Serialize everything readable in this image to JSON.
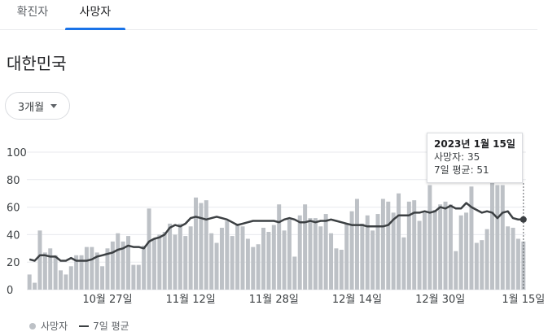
{
  "tabs": [
    {
      "label": "확진자",
      "selected": false
    },
    {
      "label": "사망자",
      "selected": true
    }
  ],
  "region": "대한민국",
  "range_selector": {
    "label": "3개월"
  },
  "tooltip": {
    "date": "2023년 1월 15일",
    "deaths_label": "사망자: 35",
    "avg_label": "7일 평균: 51"
  },
  "legend": {
    "bars_label": "사망자",
    "line_label": "7일 평균"
  },
  "colors": {
    "bar": "#bdc1c6",
    "line": "#3c4043",
    "accent": "#1a73e8",
    "grid": "#e8eaed"
  },
  "chart_data": {
    "type": "bar",
    "title": "",
    "xlabel": "",
    "ylabel": "",
    "ylim": [
      0,
      100
    ],
    "yticks": [
      0,
      20,
      40,
      60,
      80,
      100
    ],
    "xtick_labels": [
      {
        "label": "10월 27일",
        "index": 15
      },
      {
        "label": "11월 12일",
        "index": 31
      },
      {
        "label": "11월 28일",
        "index": 47
      },
      {
        "label": "12월 14일",
        "index": 63
      },
      {
        "label": "12월 30일",
        "index": 79
      },
      {
        "label": "1월 15일",
        "index": 95
      }
    ],
    "series": [
      {
        "name": "사망자",
        "type": "bar",
        "values": [
          11,
          5,
          43,
          27,
          30,
          25,
          14,
          11,
          17,
          25,
          25,
          31,
          31,
          27,
          17,
          30,
          35,
          41,
          35,
          39,
          18,
          18,
          32,
          59,
          37,
          40,
          42,
          48,
          40,
          48,
          39,
          46,
          67,
          63,
          65,
          41,
          34,
          45,
          50,
          39,
          48,
          46,
          37,
          31,
          33,
          45,
          42,
          47,
          62,
          43,
          51,
          24,
          54,
          62,
          52,
          52,
          46,
          55,
          41,
          30,
          29,
          48,
          57,
          66,
          48,
          54,
          43,
          55,
          66,
          64,
          56,
          70,
          38,
          64,
          65,
          50,
          56,
          76,
          58,
          62,
          64,
          62,
          28,
          54,
          56,
          75,
          34,
          36,
          44,
          86,
          76,
          76,
          46,
          45,
          37,
          35
        ]
      },
      {
        "name": "7일 평균",
        "type": "line",
        "values": [
          22,
          21,
          25,
          25,
          24,
          24,
          21,
          21,
          23,
          21,
          21,
          21,
          22,
          24,
          25,
          26,
          27,
          29,
          30,
          32,
          31,
          31,
          30,
          35,
          37,
          38,
          40,
          45,
          47,
          46,
          48,
          52,
          53,
          52,
          51,
          52,
          53,
          52,
          51,
          49,
          47,
          48,
          49,
          50,
          50,
          50,
          50,
          50,
          49,
          51,
          52,
          51,
          49,
          49,
          50,
          49,
          50,
          50,
          51,
          50,
          49,
          48,
          47,
          47,
          47,
          46,
          46,
          46,
          46,
          47,
          51,
          54,
          54,
          54,
          56,
          56,
          57,
          56,
          57,
          60,
          59,
          61,
          59,
          59,
          63,
          60,
          58,
          56,
          57,
          56,
          52,
          56,
          57,
          52,
          51,
          51
        ]
      }
    ]
  }
}
